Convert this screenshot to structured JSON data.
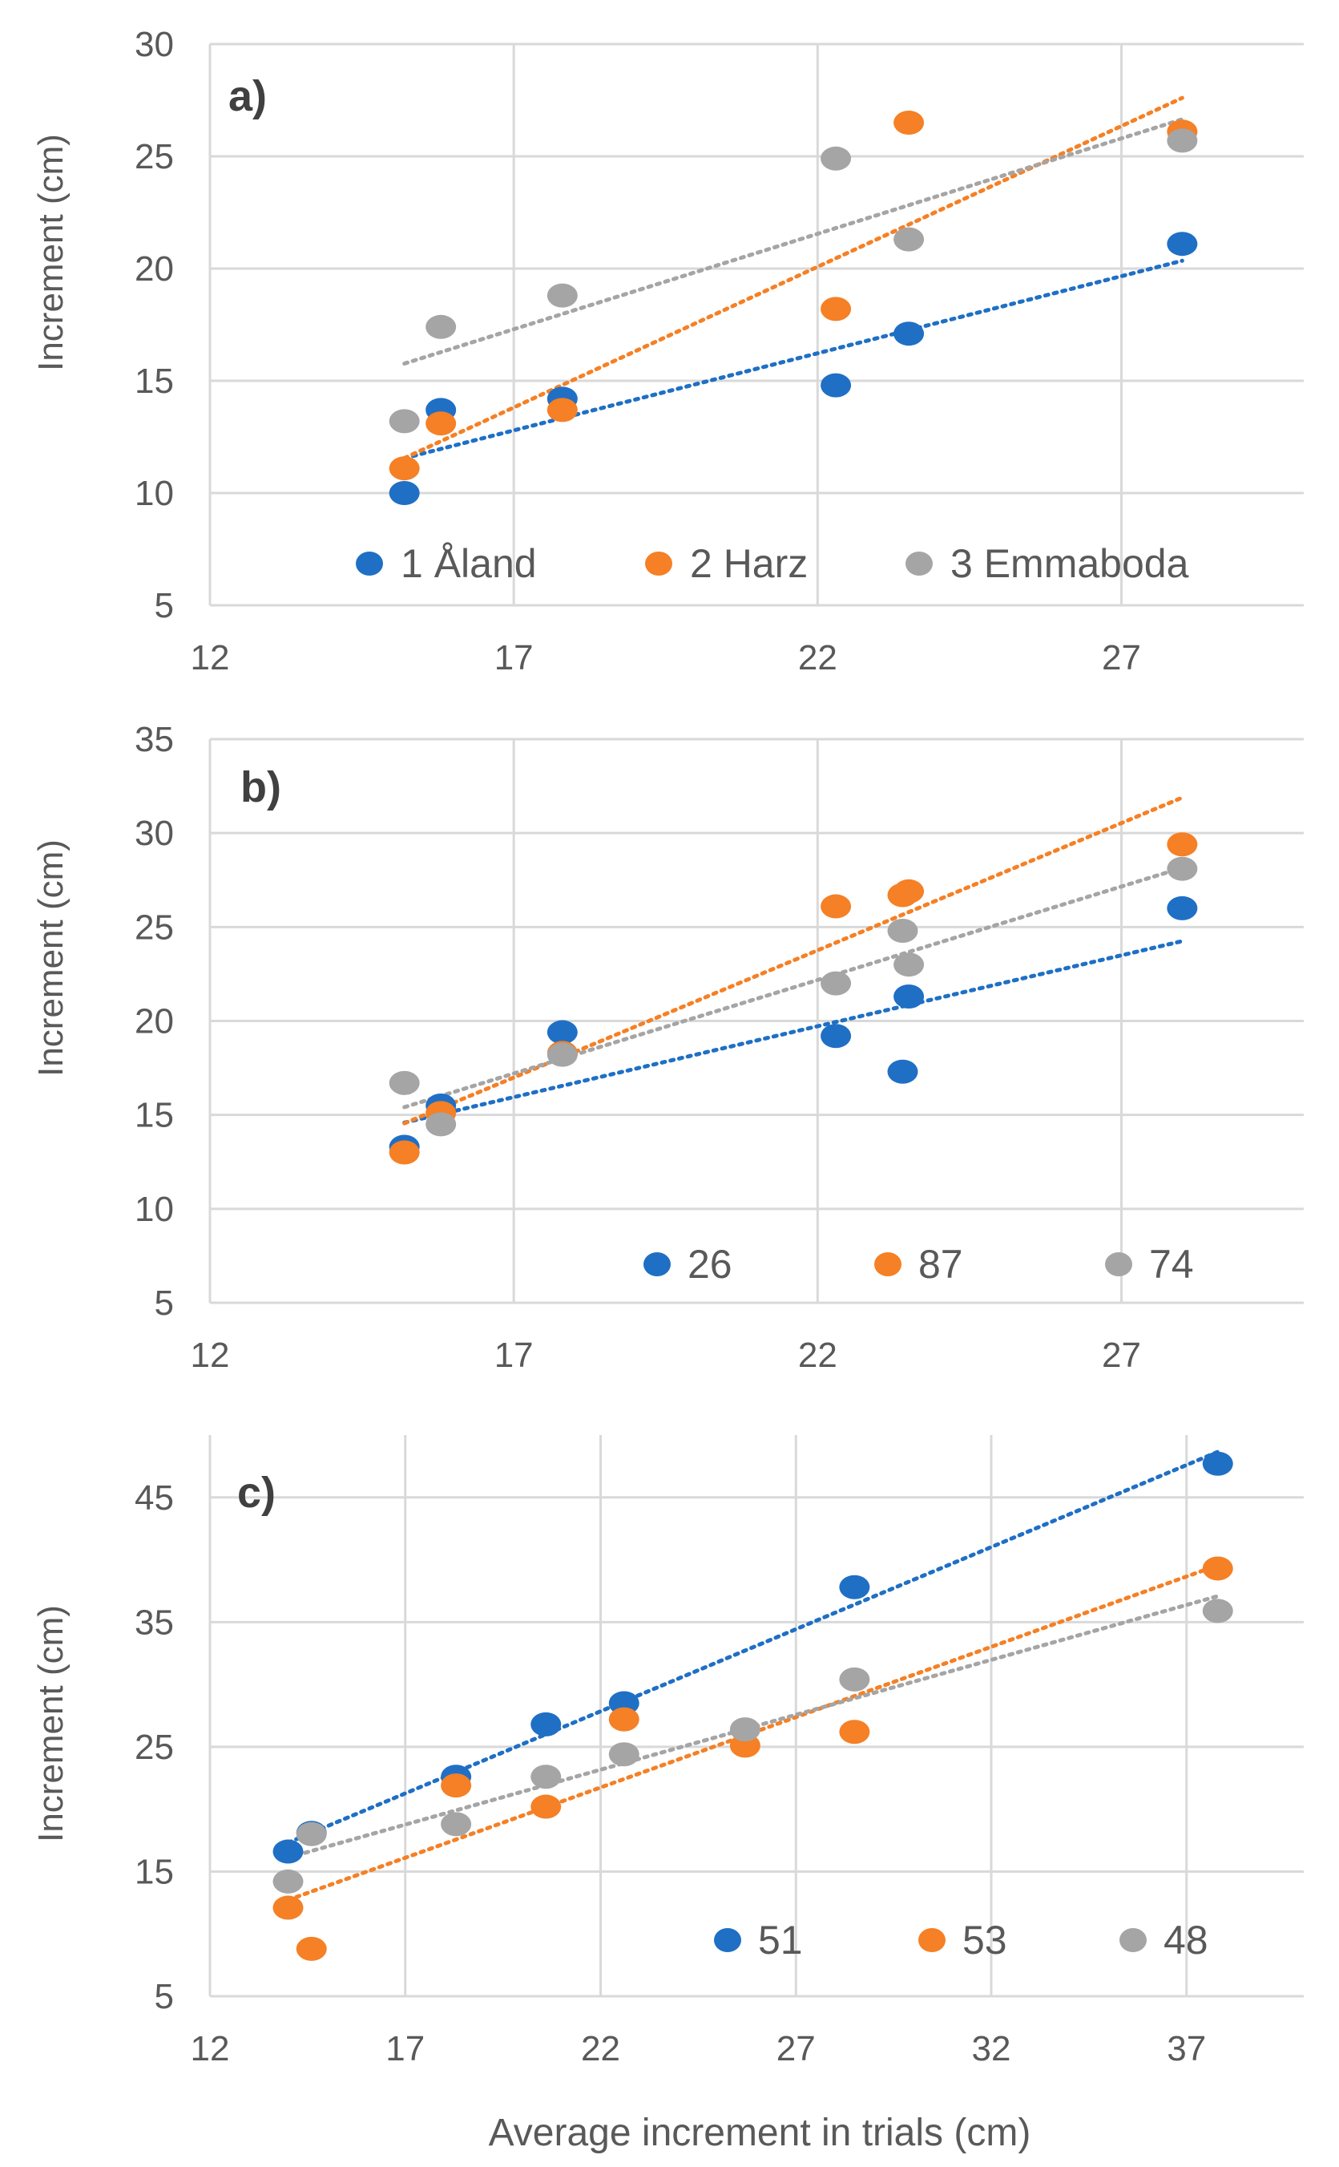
{
  "chart_data": [
    {
      "type": "scatter",
      "panel_label": "a)",
      "ylabel": "Increment (cm)",
      "xlabel": "",
      "xlim": [
        12,
        30
      ],
      "ylim": [
        5,
        30
      ],
      "xticks": [
        12,
        17,
        22,
        27
      ],
      "yticks": [
        5,
        10,
        15,
        20,
        25,
        30
      ],
      "trendline": "linear, dotted",
      "series": [
        {
          "name": "1 Åland",
          "color": "#1f6fc5",
          "x": [
            15.2,
            15.8,
            17.8,
            22.3,
            23.5,
            28.0
          ],
          "y": [
            10.0,
            13.7,
            14.2,
            14.8,
            17.1,
            21.1
          ]
        },
        {
          "name": "2 Harz",
          "color": "#f58025",
          "x": [
            15.2,
            15.8,
            17.8,
            22.3,
            23.5,
            28.0
          ],
          "y": [
            11.1,
            13.1,
            13.7,
            18.2,
            26.5,
            26.1
          ]
        },
        {
          "name": "3 Emmaboda",
          "color": "#a5a5a5",
          "x": [
            15.2,
            15.8,
            17.8,
            22.3,
            23.5,
            28.0
          ],
          "y": [
            13.2,
            17.4,
            18.8,
            24.9,
            21.3,
            25.7
          ]
        }
      ]
    },
    {
      "type": "scatter",
      "panel_label": "b)",
      "ylabel": "Increment (cm)",
      "xlabel": "",
      "xlim": [
        12,
        30
      ],
      "ylim": [
        5,
        35
      ],
      "xticks": [
        12,
        17,
        22,
        27
      ],
      "yticks": [
        5,
        10,
        15,
        20,
        25,
        30,
        35
      ],
      "trendline": "linear, dotted",
      "series": [
        {
          "name": "26",
          "color": "#1f6fc5",
          "x": [
            15.2,
            15.8,
            17.8,
            22.3,
            23.4,
            23.5,
            28.0
          ],
          "y": [
            13.3,
            15.5,
            19.4,
            19.2,
            17.3,
            21.3,
            26.0
          ]
        },
        {
          "name": "87",
          "color": "#f58025",
          "x": [
            15.2,
            15.8,
            17.8,
            22.3,
            23.4,
            23.5,
            28.0
          ],
          "y": [
            13.0,
            15.1,
            18.3,
            26.1,
            26.7,
            26.9,
            29.4
          ]
        },
        {
          "name": "74",
          "color": "#a5a5a5",
          "x": [
            15.2,
            15.8,
            17.8,
            22.3,
            23.4,
            23.5,
            28.0
          ],
          "y": [
            16.7,
            14.5,
            18.2,
            22.0,
            24.8,
            23.0,
            28.1
          ]
        }
      ]
    },
    {
      "type": "scatter",
      "panel_label": "c)",
      "ylabel": "Increment (cm)",
      "xlabel": "Average increment in trials (cm)",
      "xlim": [
        12,
        40
      ],
      "ylim": [
        5,
        50
      ],
      "xticks": [
        12,
        17,
        22,
        27,
        32,
        37
      ],
      "yticks": [
        5,
        15,
        25,
        35,
        45
      ],
      "trendline": "linear, dotted",
      "series": [
        {
          "name": "51",
          "color": "#1f6fc5",
          "x": [
            14.0,
            14.6,
            18.3,
            20.6,
            22.6,
            28.5,
            37.8
          ],
          "y": [
            16.6,
            18.1,
            22.6,
            26.8,
            28.5,
            37.8,
            47.7
          ]
        },
        {
          "name": "53",
          "color": "#f58025",
          "x": [
            14.0,
            14.6,
            18.3,
            20.6,
            22.6,
            25.7,
            28.5,
            37.8
          ],
          "y": [
            12.1,
            8.8,
            21.9,
            20.2,
            27.2,
            25.1,
            26.2,
            39.3
          ]
        },
        {
          "name": "48",
          "color": "#a5a5a5",
          "x": [
            14.0,
            14.6,
            18.3,
            20.6,
            22.6,
            25.7,
            28.5,
            37.8
          ],
          "y": [
            14.2,
            18.0,
            18.8,
            22.6,
            24.4,
            26.4,
            30.4,
            35.9
          ]
        }
      ]
    }
  ]
}
